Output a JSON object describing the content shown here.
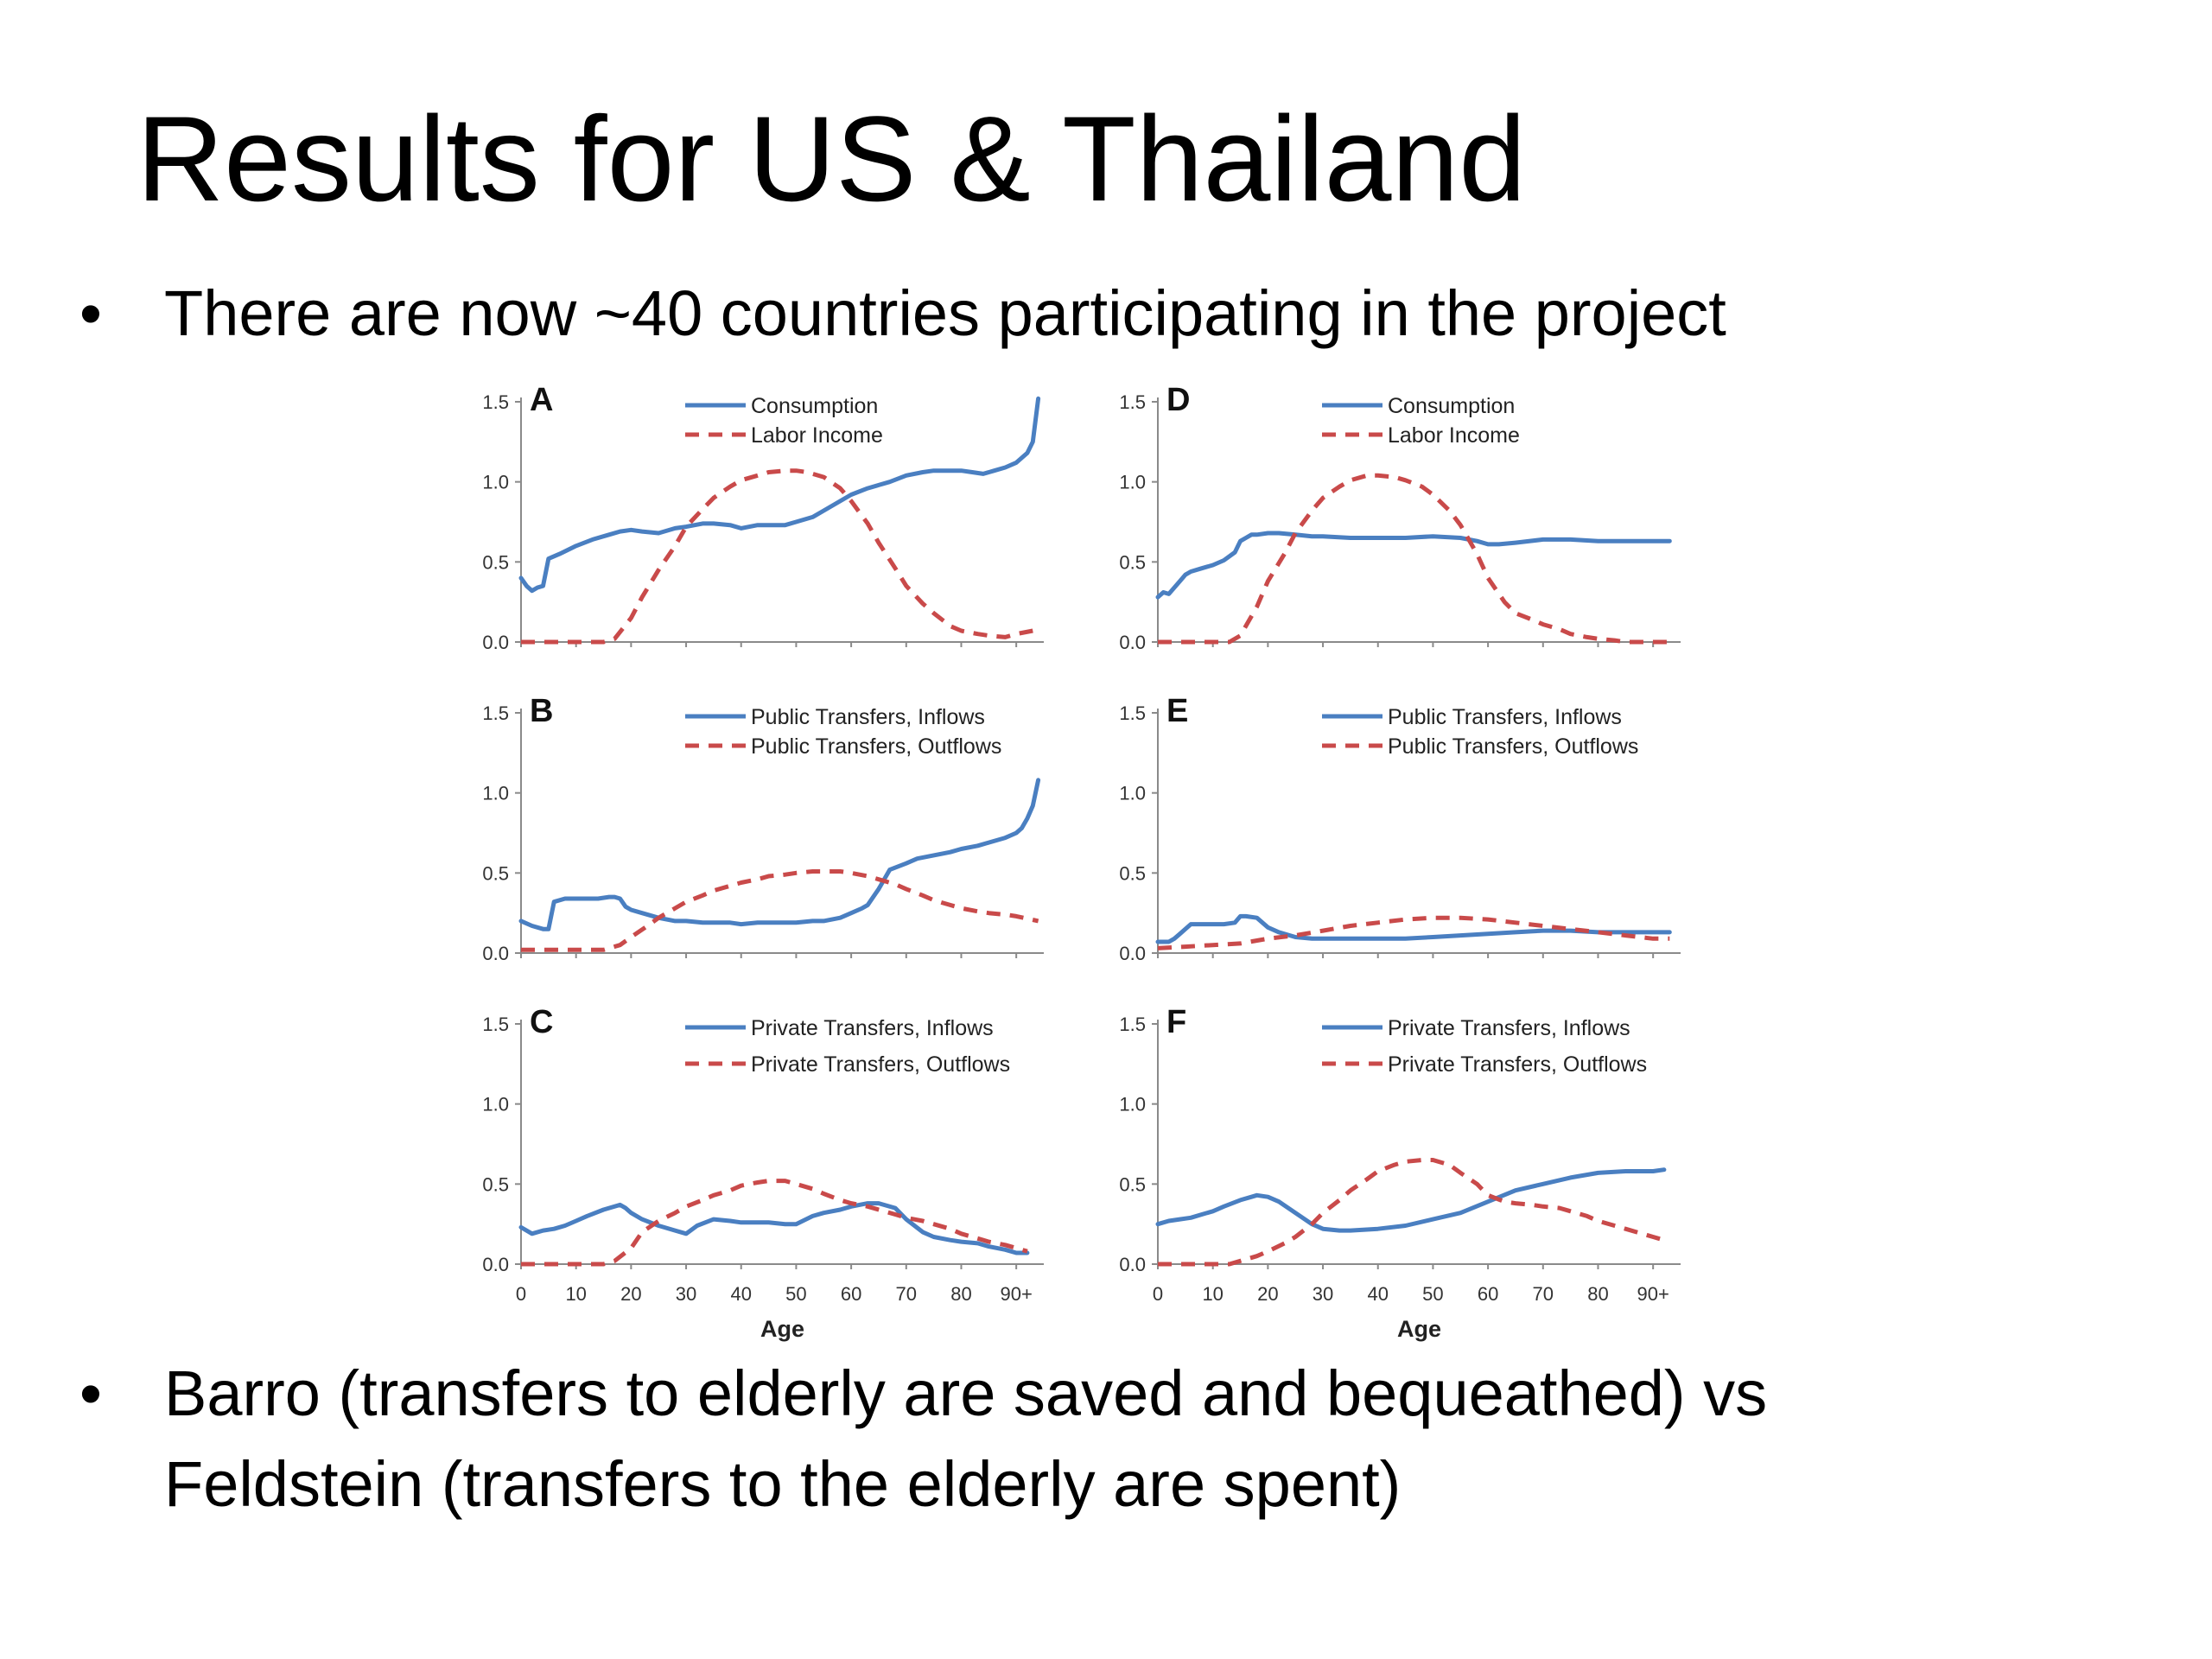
{
  "slide": {
    "title": "Results for US & Thailand",
    "bullets": [
      {
        "marker": "•",
        "lines": [
          "There are now ~40 countries participating in the project"
        ]
      },
      {
        "marker": "•",
        "lines": [
          "Barro (transfers to elderly are saved and bequeathed) vs",
          "Feldstein (transfers to the elderly are spent)"
        ]
      }
    ]
  },
  "colors": {
    "solid": "#4a7fc1",
    "dashed": "#c94a4a",
    "axis": "#8a8a8a"
  },
  "chart_data": [
    {
      "type": "line",
      "panel": "A",
      "xlabel": "",
      "ylim": [
        0,
        1.5
      ],
      "yticks": [
        "0.0",
        "0.5",
        "1.0",
        "1.5"
      ],
      "xticks": [],
      "legend_placement": "top-center",
      "series": [
        {
          "name": "Consumption",
          "style": "solid",
          "x": [
            0,
            1,
            2,
            3,
            4,
            5,
            7,
            10,
            13,
            16,
            18,
            20,
            22,
            25,
            28,
            30,
            33,
            35,
            38,
            40,
            43,
            45,
            48,
            50,
            53,
            55,
            58,
            60,
            63,
            65,
            67,
            70,
            73,
            75,
            78,
            80,
            82,
            84,
            86,
            88,
            90,
            92,
            93,
            94
          ],
          "y": [
            0.4,
            0.35,
            0.32,
            0.34,
            0.35,
            0.52,
            0.55,
            0.6,
            0.64,
            0.67,
            0.69,
            0.7,
            0.69,
            0.68,
            0.71,
            0.72,
            0.74,
            0.74,
            0.73,
            0.71,
            0.73,
            0.73,
            0.73,
            0.75,
            0.78,
            0.82,
            0.88,
            0.92,
            0.96,
            0.98,
            1.0,
            1.04,
            1.06,
            1.07,
            1.07,
            1.07,
            1.06,
            1.05,
            1.07,
            1.09,
            1.12,
            1.18,
            1.25,
            1.52
          ]
        },
        {
          "name": "Labor Income",
          "style": "dashed",
          "x": [
            0,
            5,
            10,
            15,
            17,
            20,
            22,
            25,
            28,
            30,
            33,
            35,
            38,
            40,
            43,
            45,
            48,
            50,
            52,
            55,
            58,
            60,
            63,
            65,
            68,
            70,
            73,
            75,
            78,
            80,
            83,
            85,
            88,
            90,
            93
          ],
          "y": [
            0.0,
            0.0,
            0.0,
            0.0,
            0.02,
            0.15,
            0.28,
            0.45,
            0.6,
            0.72,
            0.83,
            0.9,
            0.97,
            1.01,
            1.04,
            1.06,
            1.07,
            1.07,
            1.06,
            1.03,
            0.96,
            0.88,
            0.74,
            0.62,
            0.46,
            0.35,
            0.24,
            0.18,
            0.1,
            0.07,
            0.05,
            0.04,
            0.03,
            0.05,
            0.07
          ]
        }
      ]
    },
    {
      "type": "line",
      "panel": "B",
      "xlabel": "",
      "ylim": [
        0,
        1.5
      ],
      "yticks": [
        "0.0",
        "0.5",
        "1.0",
        "1.5"
      ],
      "xticks": [],
      "legend_placement": "top-center",
      "series": [
        {
          "name": "Public Transfers, Inflows",
          "style": "solid",
          "x": [
            0,
            2,
            4,
            5,
            6,
            8,
            10,
            12,
            14,
            16,
            17,
            18,
            19,
            20,
            22,
            25,
            28,
            30,
            33,
            35,
            38,
            40,
            43,
            45,
            48,
            50,
            53,
            55,
            58,
            60,
            62,
            63,
            64,
            65,
            67,
            70,
            72,
            75,
            78,
            80,
            83,
            85,
            88,
            90,
            91,
            92,
            93,
            94
          ],
          "y": [
            0.2,
            0.17,
            0.15,
            0.15,
            0.32,
            0.34,
            0.34,
            0.34,
            0.34,
            0.35,
            0.35,
            0.34,
            0.29,
            0.27,
            0.25,
            0.22,
            0.2,
            0.2,
            0.19,
            0.19,
            0.19,
            0.18,
            0.19,
            0.19,
            0.19,
            0.19,
            0.2,
            0.2,
            0.22,
            0.25,
            0.28,
            0.3,
            0.35,
            0.4,
            0.52,
            0.56,
            0.59,
            0.61,
            0.63,
            0.65,
            0.67,
            0.69,
            0.72,
            0.75,
            0.78,
            0.84,
            0.92,
            1.08
          ]
        },
        {
          "name": "Public Transfers, Outflows",
          "style": "dashed",
          "x": [
            0,
            5,
            10,
            15,
            18,
            20,
            23,
            25,
            28,
            30,
            33,
            35,
            38,
            40,
            43,
            45,
            48,
            50,
            53,
            55,
            58,
            60,
            63,
            65,
            68,
            70,
            73,
            75,
            78,
            80,
            83,
            85,
            88,
            90,
            94
          ],
          "y": [
            0.02,
            0.02,
            0.02,
            0.02,
            0.05,
            0.1,
            0.17,
            0.22,
            0.28,
            0.32,
            0.36,
            0.39,
            0.42,
            0.44,
            0.46,
            0.48,
            0.49,
            0.5,
            0.51,
            0.51,
            0.51,
            0.5,
            0.48,
            0.46,
            0.43,
            0.4,
            0.36,
            0.33,
            0.3,
            0.28,
            0.26,
            0.25,
            0.24,
            0.23,
            0.2
          ]
        }
      ]
    },
    {
      "type": "line",
      "panel": "C",
      "xlabel": "Age",
      "ylim": [
        0,
        1.5
      ],
      "yticks": [
        "0.0",
        "0.5",
        "1.0",
        "1.5"
      ],
      "xticks": [
        "0",
        "10",
        "20",
        "30",
        "40",
        "50",
        "60",
        "70",
        "80",
        "90+"
      ],
      "legend_placement": "top-center",
      "series": [
        {
          "name": "Private Transfers, Inflows",
          "style": "solid",
          "x": [
            0,
            2,
            4,
            6,
            8,
            10,
            12,
            15,
            18,
            19,
            20,
            22,
            25,
            28,
            30,
            32,
            35,
            38,
            40,
            43,
            45,
            48,
            50,
            53,
            55,
            58,
            60,
            63,
            65,
            68,
            70,
            73,
            75,
            78,
            80,
            83,
            85,
            88,
            90,
            92
          ],
          "y": [
            0.23,
            0.19,
            0.21,
            0.22,
            0.24,
            0.27,
            0.3,
            0.34,
            0.37,
            0.35,
            0.32,
            0.28,
            0.24,
            0.21,
            0.19,
            0.24,
            0.28,
            0.27,
            0.26,
            0.26,
            0.26,
            0.25,
            0.25,
            0.3,
            0.32,
            0.34,
            0.36,
            0.38,
            0.38,
            0.35,
            0.28,
            0.2,
            0.17,
            0.15,
            0.14,
            0.13,
            0.11,
            0.09,
            0.07,
            0.07
          ]
        },
        {
          "name": "Private Transfers, Outflows",
          "style": "dashed",
          "x": [
            0,
            5,
            10,
            15,
            17,
            20,
            22,
            25,
            28,
            30,
            33,
            35,
            38,
            40,
            43,
            45,
            48,
            50,
            53,
            55,
            58,
            60,
            63,
            65,
            68,
            70,
            73,
            75,
            78,
            80,
            83,
            85,
            88,
            90,
            92
          ],
          "y": [
            0.0,
            0.0,
            0.0,
            0.0,
            0.02,
            0.1,
            0.2,
            0.27,
            0.32,
            0.36,
            0.4,
            0.43,
            0.46,
            0.49,
            0.51,
            0.52,
            0.52,
            0.5,
            0.47,
            0.44,
            0.4,
            0.38,
            0.36,
            0.34,
            0.31,
            0.29,
            0.27,
            0.25,
            0.22,
            0.19,
            0.16,
            0.14,
            0.12,
            0.1,
            0.08
          ]
        }
      ]
    },
    {
      "type": "line",
      "panel": "D",
      "xlabel": "",
      "ylim": [
        0,
        1.5
      ],
      "yticks": [
        "0.0",
        "0.5",
        "1.0",
        "1.5"
      ],
      "xticks": [],
      "legend_placement": "top-center",
      "series": [
        {
          "name": "Consumption",
          "style": "solid",
          "x": [
            0,
            1,
            2,
            3,
            4,
            5,
            6,
            8,
            10,
            12,
            14,
            15,
            16,
            17,
            18,
            20,
            22,
            25,
            28,
            30,
            35,
            40,
            45,
            50,
            55,
            58,
            60,
            62,
            65,
            70,
            75,
            80,
            85,
            90,
            93
          ],
          "y": [
            0.28,
            0.31,
            0.3,
            0.34,
            0.38,
            0.42,
            0.44,
            0.46,
            0.48,
            0.51,
            0.56,
            0.63,
            0.65,
            0.67,
            0.67,
            0.68,
            0.68,
            0.67,
            0.66,
            0.66,
            0.65,
            0.65,
            0.65,
            0.66,
            0.65,
            0.63,
            0.61,
            0.61,
            0.62,
            0.64,
            0.64,
            0.63,
            0.63,
            0.63,
            0.63
          ]
        },
        {
          "name": "Labor Income",
          "style": "dashed",
          "x": [
            0,
            5,
            10,
            13,
            15,
            18,
            20,
            23,
            25,
            28,
            30,
            33,
            35,
            38,
            40,
            43,
            45,
            48,
            50,
            53,
            55,
            58,
            60,
            63,
            65,
            68,
            70,
            73,
            75,
            78,
            80,
            83,
            85,
            88,
            90,
            93
          ],
          "y": [
            0.0,
            0.0,
            0.0,
            0.0,
            0.04,
            0.22,
            0.38,
            0.55,
            0.68,
            0.82,
            0.9,
            0.97,
            1.01,
            1.04,
            1.04,
            1.03,
            1.01,
            0.97,
            0.92,
            0.82,
            0.73,
            0.55,
            0.4,
            0.25,
            0.18,
            0.14,
            0.11,
            0.08,
            0.05,
            0.03,
            0.02,
            0.01,
            0.0,
            0.0,
            0.0,
            0.0
          ]
        }
      ]
    },
    {
      "type": "line",
      "panel": "E",
      "xlabel": "",
      "ylim": [
        0,
        1.5
      ],
      "yticks": [
        "0.0",
        "0.5",
        "1.0",
        "1.5"
      ],
      "xticks": [],
      "legend_placement": "top-center",
      "series": [
        {
          "name": "Public Transfers, Inflows",
          "style": "solid",
          "x": [
            0,
            2,
            3,
            4,
            5,
            6,
            8,
            10,
            12,
            14,
            15,
            16,
            18,
            20,
            22,
            25,
            28,
            30,
            35,
            40,
            45,
            50,
            55,
            60,
            65,
            70,
            75,
            80,
            85,
            90,
            93
          ],
          "y": [
            0.07,
            0.07,
            0.09,
            0.12,
            0.15,
            0.18,
            0.18,
            0.18,
            0.18,
            0.19,
            0.23,
            0.23,
            0.22,
            0.16,
            0.13,
            0.1,
            0.09,
            0.09,
            0.09,
            0.09,
            0.09,
            0.1,
            0.11,
            0.12,
            0.13,
            0.14,
            0.14,
            0.13,
            0.13,
            0.13,
            0.13
          ]
        },
        {
          "name": "Public Transfers, Outflows",
          "style": "dashed",
          "x": [
            0,
            5,
            10,
            15,
            20,
            25,
            30,
            35,
            40,
            45,
            50,
            55,
            60,
            65,
            70,
            75,
            80,
            85,
            90,
            93
          ],
          "y": [
            0.03,
            0.04,
            0.05,
            0.06,
            0.09,
            0.11,
            0.14,
            0.17,
            0.19,
            0.21,
            0.22,
            0.22,
            0.21,
            0.19,
            0.17,
            0.15,
            0.13,
            0.11,
            0.09,
            0.09
          ]
        }
      ]
    },
    {
      "type": "line",
      "panel": "F",
      "xlabel": "Age",
      "ylim": [
        0,
        1.5
      ],
      "yticks": [
        "0.0",
        "0.5",
        "1.0",
        "1.5"
      ],
      "xticks": [
        "0",
        "10",
        "20",
        "30",
        "40",
        "50",
        "60",
        "70",
        "80",
        "90+"
      ],
      "legend_placement": "top-center",
      "series": [
        {
          "name": "Private Transfers, Inflows",
          "style": "solid",
          "x": [
            0,
            2,
            4,
            6,
            8,
            10,
            12,
            15,
            17,
            18,
            20,
            22,
            25,
            28,
            30,
            33,
            35,
            40,
            45,
            50,
            55,
            60,
            65,
            70,
            75,
            80,
            85,
            90,
            92
          ],
          "y": [
            0.25,
            0.27,
            0.28,
            0.29,
            0.31,
            0.33,
            0.36,
            0.4,
            0.42,
            0.43,
            0.42,
            0.39,
            0.32,
            0.25,
            0.22,
            0.21,
            0.21,
            0.22,
            0.24,
            0.28,
            0.32,
            0.39,
            0.46,
            0.5,
            0.54,
            0.57,
            0.58,
            0.58,
            0.59
          ]
        },
        {
          "name": "Private Transfers, Outflows",
          "style": "dashed",
          "x": [
            0,
            5,
            10,
            13,
            15,
            18,
            20,
            23,
            25,
            28,
            30,
            33,
            35,
            38,
            40,
            43,
            45,
            48,
            50,
            53,
            55,
            58,
            60,
            63,
            65,
            68,
            70,
            73,
            75,
            78,
            80,
            83,
            85,
            88,
            90,
            92
          ],
          "y": [
            0.0,
            0.0,
            0.0,
            0.0,
            0.02,
            0.05,
            0.08,
            0.13,
            0.17,
            0.25,
            0.32,
            0.4,
            0.46,
            0.53,
            0.58,
            0.62,
            0.64,
            0.65,
            0.65,
            0.62,
            0.57,
            0.5,
            0.43,
            0.39,
            0.38,
            0.37,
            0.36,
            0.35,
            0.33,
            0.3,
            0.27,
            0.24,
            0.22,
            0.19,
            0.17,
            0.15
          ]
        }
      ]
    }
  ]
}
